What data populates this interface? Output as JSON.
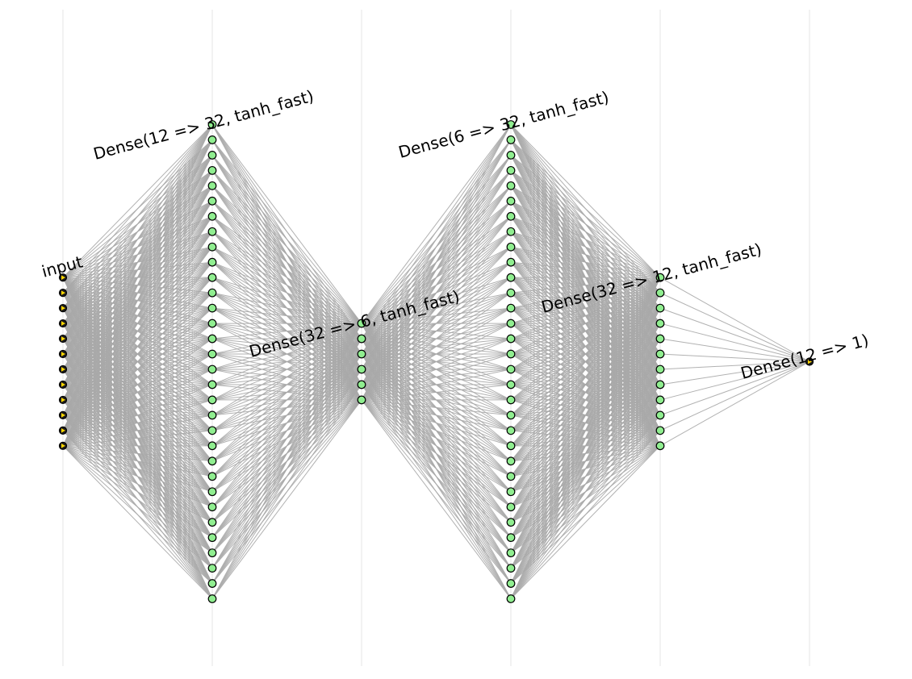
{
  "diagram": {
    "title": "",
    "colors": {
      "background": "#ffffff",
      "edge": "#a9a9a9",
      "guide": "#e6e6e6",
      "hidden_node_fill": "#90ee90",
      "io_node_fill": "#ffd700",
      "node_stroke": "#000000"
    },
    "layers": [
      {
        "label": "input",
        "neurons": 12,
        "node_style": "triangle"
      },
      {
        "label": "Dense(12 => 32, tanh_fast)",
        "neurons": 32,
        "node_style": "circle"
      },
      {
        "label": "Dense(32 => 6, tanh_fast)",
        "neurons": 6,
        "node_style": "circle"
      },
      {
        "label": "Dense(6 => 32, tanh_fast)",
        "neurons": 32,
        "node_style": "circle"
      },
      {
        "label": "Dense(32 => 12, tanh_fast)",
        "neurons": 12,
        "node_style": "circle"
      },
      {
        "label": "Dense(12 => 1)",
        "neurons": 1,
        "node_style": "triangle"
      }
    ]
  }
}
